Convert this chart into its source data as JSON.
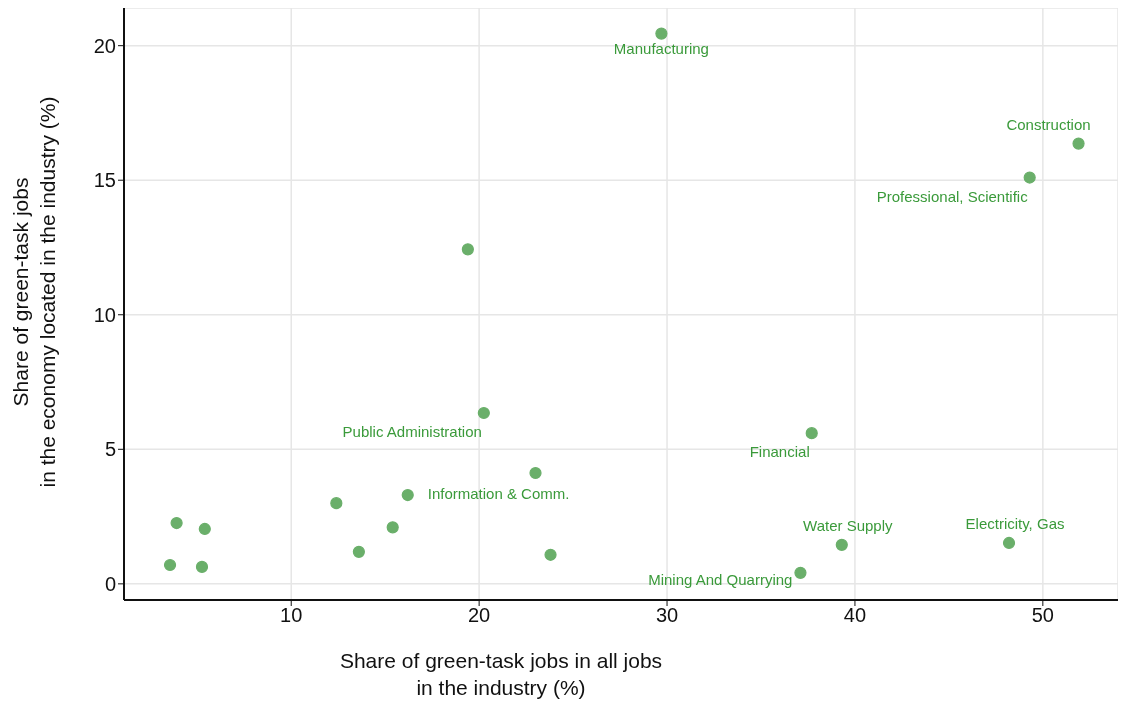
{
  "chart_data": {
    "type": "scatter",
    "xlabel": "Share of green-task jobs in all jobs\nin the industry (%)",
    "ylabel": "Share of green-task jobs\nin the economy located in the industry (%)",
    "series": [
      {
        "color": "#6aaf6a",
        "x": [
          29.7,
          51.9,
          49.3,
          19.4,
          20.25,
          37.7,
          23.0,
          16.2,
          12.4,
          15.4,
          3.9,
          5.4,
          13.6,
          23.8,
          3.55,
          5.25,
          37.1,
          39.3,
          48.2
        ],
        "values": [
          20.45,
          16.36,
          15.1,
          12.43,
          6.35,
          5.6,
          4.12,
          3.3,
          3.0,
          2.1,
          2.26,
          2.04,
          1.19,
          1.08,
          0.7,
          0.63,
          0.41,
          1.45,
          1.52
        ]
      }
    ],
    "annotations": [
      {
        "text": "Manufacturing",
        "x": 29.7,
        "y": 20.45
      },
      {
        "text": "Construction",
        "x": 51.9,
        "y": 16.36
      },
      {
        "text": "Professional, Scientific",
        "x": 49.3,
        "y": 15.1
      },
      {
        "text": "Public Administration",
        "x": 20.25,
        "y": 6.35
      },
      {
        "text": "Financial",
        "x": 37.7,
        "y": 5.6
      },
      {
        "text": "Information & Comm.",
        "x": 16.2,
        "y": 3.3
      },
      {
        "text": "Water Supply",
        "x": 39.3,
        "y": 1.45
      },
      {
        "text": "Electricity, Gas",
        "x": 48.2,
        "y": 1.52
      },
      {
        "text": "Mining And Quarrying",
        "x": 37.1,
        "y": 0.41
      }
    ],
    "xlim": [
      1.1,
      54
    ],
    "ylim": [
      -0.6,
      21.4
    ],
    "xticks": [
      10,
      20,
      30,
      40,
      50
    ],
    "yticks": [
      0,
      5,
      10,
      15,
      20
    ],
    "grid": true,
    "marker": "circle",
    "legend": false
  }
}
